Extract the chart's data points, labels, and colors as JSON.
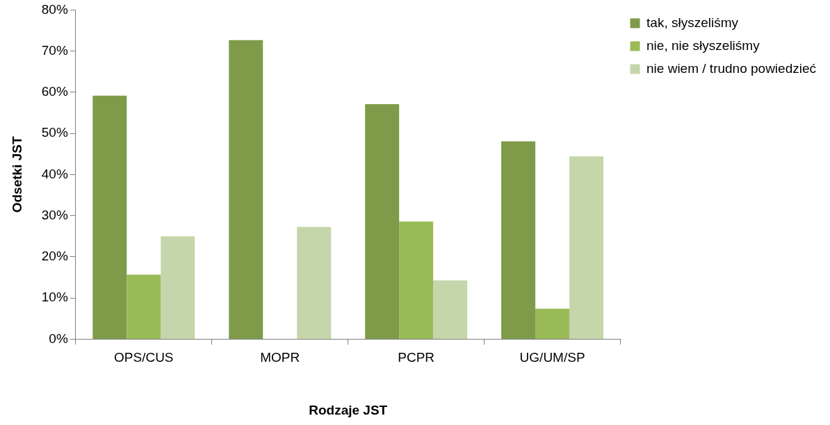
{
  "chart_data": {
    "type": "bar",
    "xlabel": "Rodzaje JST",
    "ylabel": "Odsetki JST",
    "categories": [
      "OPS/CUS",
      "MOPR",
      "PCPR",
      "UG/UM/SP"
    ],
    "series": [
      {
        "name": "tak, słyszeliśmy",
        "color": "#7f9b4a",
        "values": [
          59.2,
          72.7,
          57.1,
          48.1
        ]
      },
      {
        "name": "nie, nie słyszeliśmy",
        "color": "#9bbb59",
        "values": [
          15.7,
          0,
          28.6,
          7.4
        ]
      },
      {
        "name": "nie wiem / trudno powiedzieć",
        "color": "#c5d6aa",
        "values": [
          25.0,
          27.3,
          14.3,
          44.4
        ]
      }
    ],
    "ylim": [
      0,
      80
    ],
    "yticks": [
      {
        "value": 0,
        "label": "0%"
      },
      {
        "value": 10,
        "label": "10%"
      },
      {
        "value": 20,
        "label": "20%"
      },
      {
        "value": 30,
        "label": "30%"
      },
      {
        "value": 40,
        "label": "40%"
      },
      {
        "value": 50,
        "label": "50%"
      },
      {
        "value": 60,
        "label": "60%"
      },
      {
        "value": 70,
        "label": "70%"
      },
      {
        "value": 80,
        "label": "80%"
      }
    ],
    "grid": false,
    "legend": "top right"
  }
}
